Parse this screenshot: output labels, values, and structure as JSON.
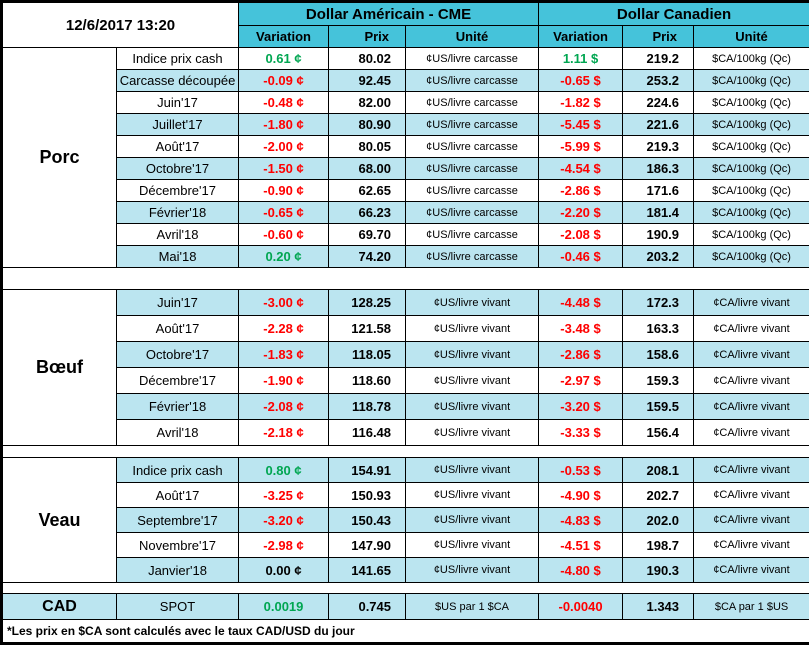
{
  "meta": {
    "date": "12/6/2017 13:20"
  },
  "header": {
    "group_us": "Dollar Américain - CME",
    "group_ca": "Dollar Canadien",
    "cols": [
      "Variation",
      "Prix",
      "Unité"
    ]
  },
  "sections": [
    {
      "id": "porc",
      "name": "Porc",
      "stripe_start": "white",
      "rows": [
        {
          "label": "Indice prix cash",
          "us_var": "0.61 ¢",
          "us_prix": "80.02",
          "us_unit": "¢US/livre carcasse",
          "ca_var": "1.11 $",
          "ca_prix": "219.2",
          "ca_unit": "$CA/100kg (Qc)"
        },
        {
          "label": "Carcasse découpée",
          "us_var": "-0.09 ¢",
          "us_prix": "92.45",
          "us_unit": "¢US/livre carcasse",
          "ca_var": "-0.65 $",
          "ca_prix": "253.2",
          "ca_unit": "$CA/100kg (Qc)"
        },
        {
          "label": "Juin'17",
          "us_var": "-0.48 ¢",
          "us_prix": "82.00",
          "us_unit": "¢US/livre carcasse",
          "ca_var": "-1.82 $",
          "ca_prix": "224.6",
          "ca_unit": "$CA/100kg (Qc)"
        },
        {
          "label": "Juillet'17",
          "us_var": "-1.80 ¢",
          "us_prix": "80.90",
          "us_unit": "¢US/livre carcasse",
          "ca_var": "-5.45 $",
          "ca_prix": "221.6",
          "ca_unit": "$CA/100kg (Qc)"
        },
        {
          "label": "Août'17",
          "us_var": "-2.00 ¢",
          "us_prix": "80.05",
          "us_unit": "¢US/livre carcasse",
          "ca_var": "-5.99 $",
          "ca_prix": "219.3",
          "ca_unit": "$CA/100kg (Qc)"
        },
        {
          "label": "Octobre'17",
          "us_var": "-1.50 ¢",
          "us_prix": "68.00",
          "us_unit": "¢US/livre carcasse",
          "ca_var": "-4.54 $",
          "ca_prix": "186.3",
          "ca_unit": "$CA/100kg (Qc)"
        },
        {
          "label": "Décembre'17",
          "us_var": "-0.90 ¢",
          "us_prix": "62.65",
          "us_unit": "¢US/livre carcasse",
          "ca_var": "-2.86 $",
          "ca_prix": "171.6",
          "ca_unit": "$CA/100kg (Qc)"
        },
        {
          "label": "Février'18",
          "us_var": "-0.65 ¢",
          "us_prix": "66.23",
          "us_unit": "¢US/livre carcasse",
          "ca_var": "-2.20 $",
          "ca_prix": "181.4",
          "ca_unit": "$CA/100kg (Qc)"
        },
        {
          "label": "Avril'18",
          "us_var": "-0.60 ¢",
          "us_prix": "69.70",
          "us_unit": "¢US/livre carcasse",
          "ca_var": "-2.08 $",
          "ca_prix": "190.9",
          "ca_unit": "$CA/100kg (Qc)"
        },
        {
          "label": "Mai'18",
          "us_var": "0.20 ¢",
          "us_prix": "74.20",
          "us_unit": "¢US/livre carcasse",
          "ca_var": "-0.46 $",
          "ca_prix": "203.2",
          "ca_unit": "$CA/100kg (Qc)"
        }
      ]
    },
    {
      "id": "boeuf",
      "name": "Bœuf",
      "stripe_start": "blue",
      "rows": [
        {
          "label": "Juin'17",
          "us_var": "-3.00 ¢",
          "us_prix": "128.25",
          "us_unit": "¢US/livre vivant",
          "ca_var": "-4.48 $",
          "ca_prix": "172.3",
          "ca_unit": "¢CA/livre vivant"
        },
        {
          "label": "Août'17",
          "us_var": "-2.28 ¢",
          "us_prix": "121.58",
          "us_unit": "¢US/livre vivant",
          "ca_var": "-3.48 $",
          "ca_prix": "163.3",
          "ca_unit": "¢CA/livre vivant"
        },
        {
          "label": "Octobre'17",
          "us_var": "-1.83 ¢",
          "us_prix": "118.05",
          "us_unit": "¢US/livre vivant",
          "ca_var": "-2.86 $",
          "ca_prix": "158.6",
          "ca_unit": "¢CA/livre vivant"
        },
        {
          "label": "Décembre'17",
          "us_var": "-1.90 ¢",
          "us_prix": "118.60",
          "us_unit": "¢US/livre vivant",
          "ca_var": "-2.97 $",
          "ca_prix": "159.3",
          "ca_unit": "¢CA/livre vivant"
        },
        {
          "label": "Février'18",
          "us_var": "-2.08 ¢",
          "us_prix": "118.78",
          "us_unit": "¢US/livre vivant",
          "ca_var": "-3.20 $",
          "ca_prix": "159.5",
          "ca_unit": "¢CA/livre vivant"
        },
        {
          "label": "Avril'18",
          "us_var": "-2.18 ¢",
          "us_prix": "116.48",
          "us_unit": "¢US/livre vivant",
          "ca_var": "-3.33 $",
          "ca_prix": "156.4",
          "ca_unit": "¢CA/livre vivant"
        }
      ]
    },
    {
      "id": "veau",
      "name": "Veau",
      "stripe_start": "blue",
      "rows": [
        {
          "label": "Indice prix cash",
          "us_var": "0.80 ¢",
          "us_prix": "154.91",
          "us_unit": "¢US/livre vivant",
          "ca_var": "-0.53 $",
          "ca_prix": "208.1",
          "ca_unit": "¢CA/livre vivant"
        },
        {
          "label": "Août'17",
          "us_var": "-3.25 ¢",
          "us_prix": "150.93",
          "us_unit": "¢US/livre vivant",
          "ca_var": "-4.90 $",
          "ca_prix": "202.7",
          "ca_unit": "¢CA/livre vivant"
        },
        {
          "label": "Septembre'17",
          "us_var": "-3.20 ¢",
          "us_prix": "150.43",
          "us_unit": "¢US/livre vivant",
          "ca_var": "-4.83 $",
          "ca_prix": "202.0",
          "ca_unit": "¢CA/livre vivant"
        },
        {
          "label": "Novembre'17",
          "us_var": "-2.98 ¢",
          "us_prix": "147.90",
          "us_unit": "¢US/livre vivant",
          "ca_var": "-4.51 $",
          "ca_prix": "198.7",
          "ca_unit": "¢CA/livre vivant"
        },
        {
          "label": "Janvier'18",
          "us_var": "0.00 ¢",
          "us_prix": "141.65",
          "us_unit": "¢US/livre vivant",
          "ca_var": "-4.80 $",
          "ca_prix": "190.3",
          "ca_unit": "¢CA/livre vivant"
        }
      ]
    }
  ],
  "cad": {
    "name": "CAD",
    "label": "SPOT",
    "us_var": "0.0019",
    "us_prix": "0.745",
    "us_unit": "$US par 1 $CA",
    "ca_var": "-0.0040",
    "ca_prix": "1.343",
    "ca_unit": "$CA par 1 $US"
  },
  "footnote": "*Les prix en $CA sont calculés avec le taux CAD/USD du jour",
  "colors": {
    "header_bg": "#45C3DA",
    "stripe_bg": "#BBE5F0",
    "positive": "#00A651",
    "negative": "#FF0000",
    "neutral": "#000000"
  }
}
